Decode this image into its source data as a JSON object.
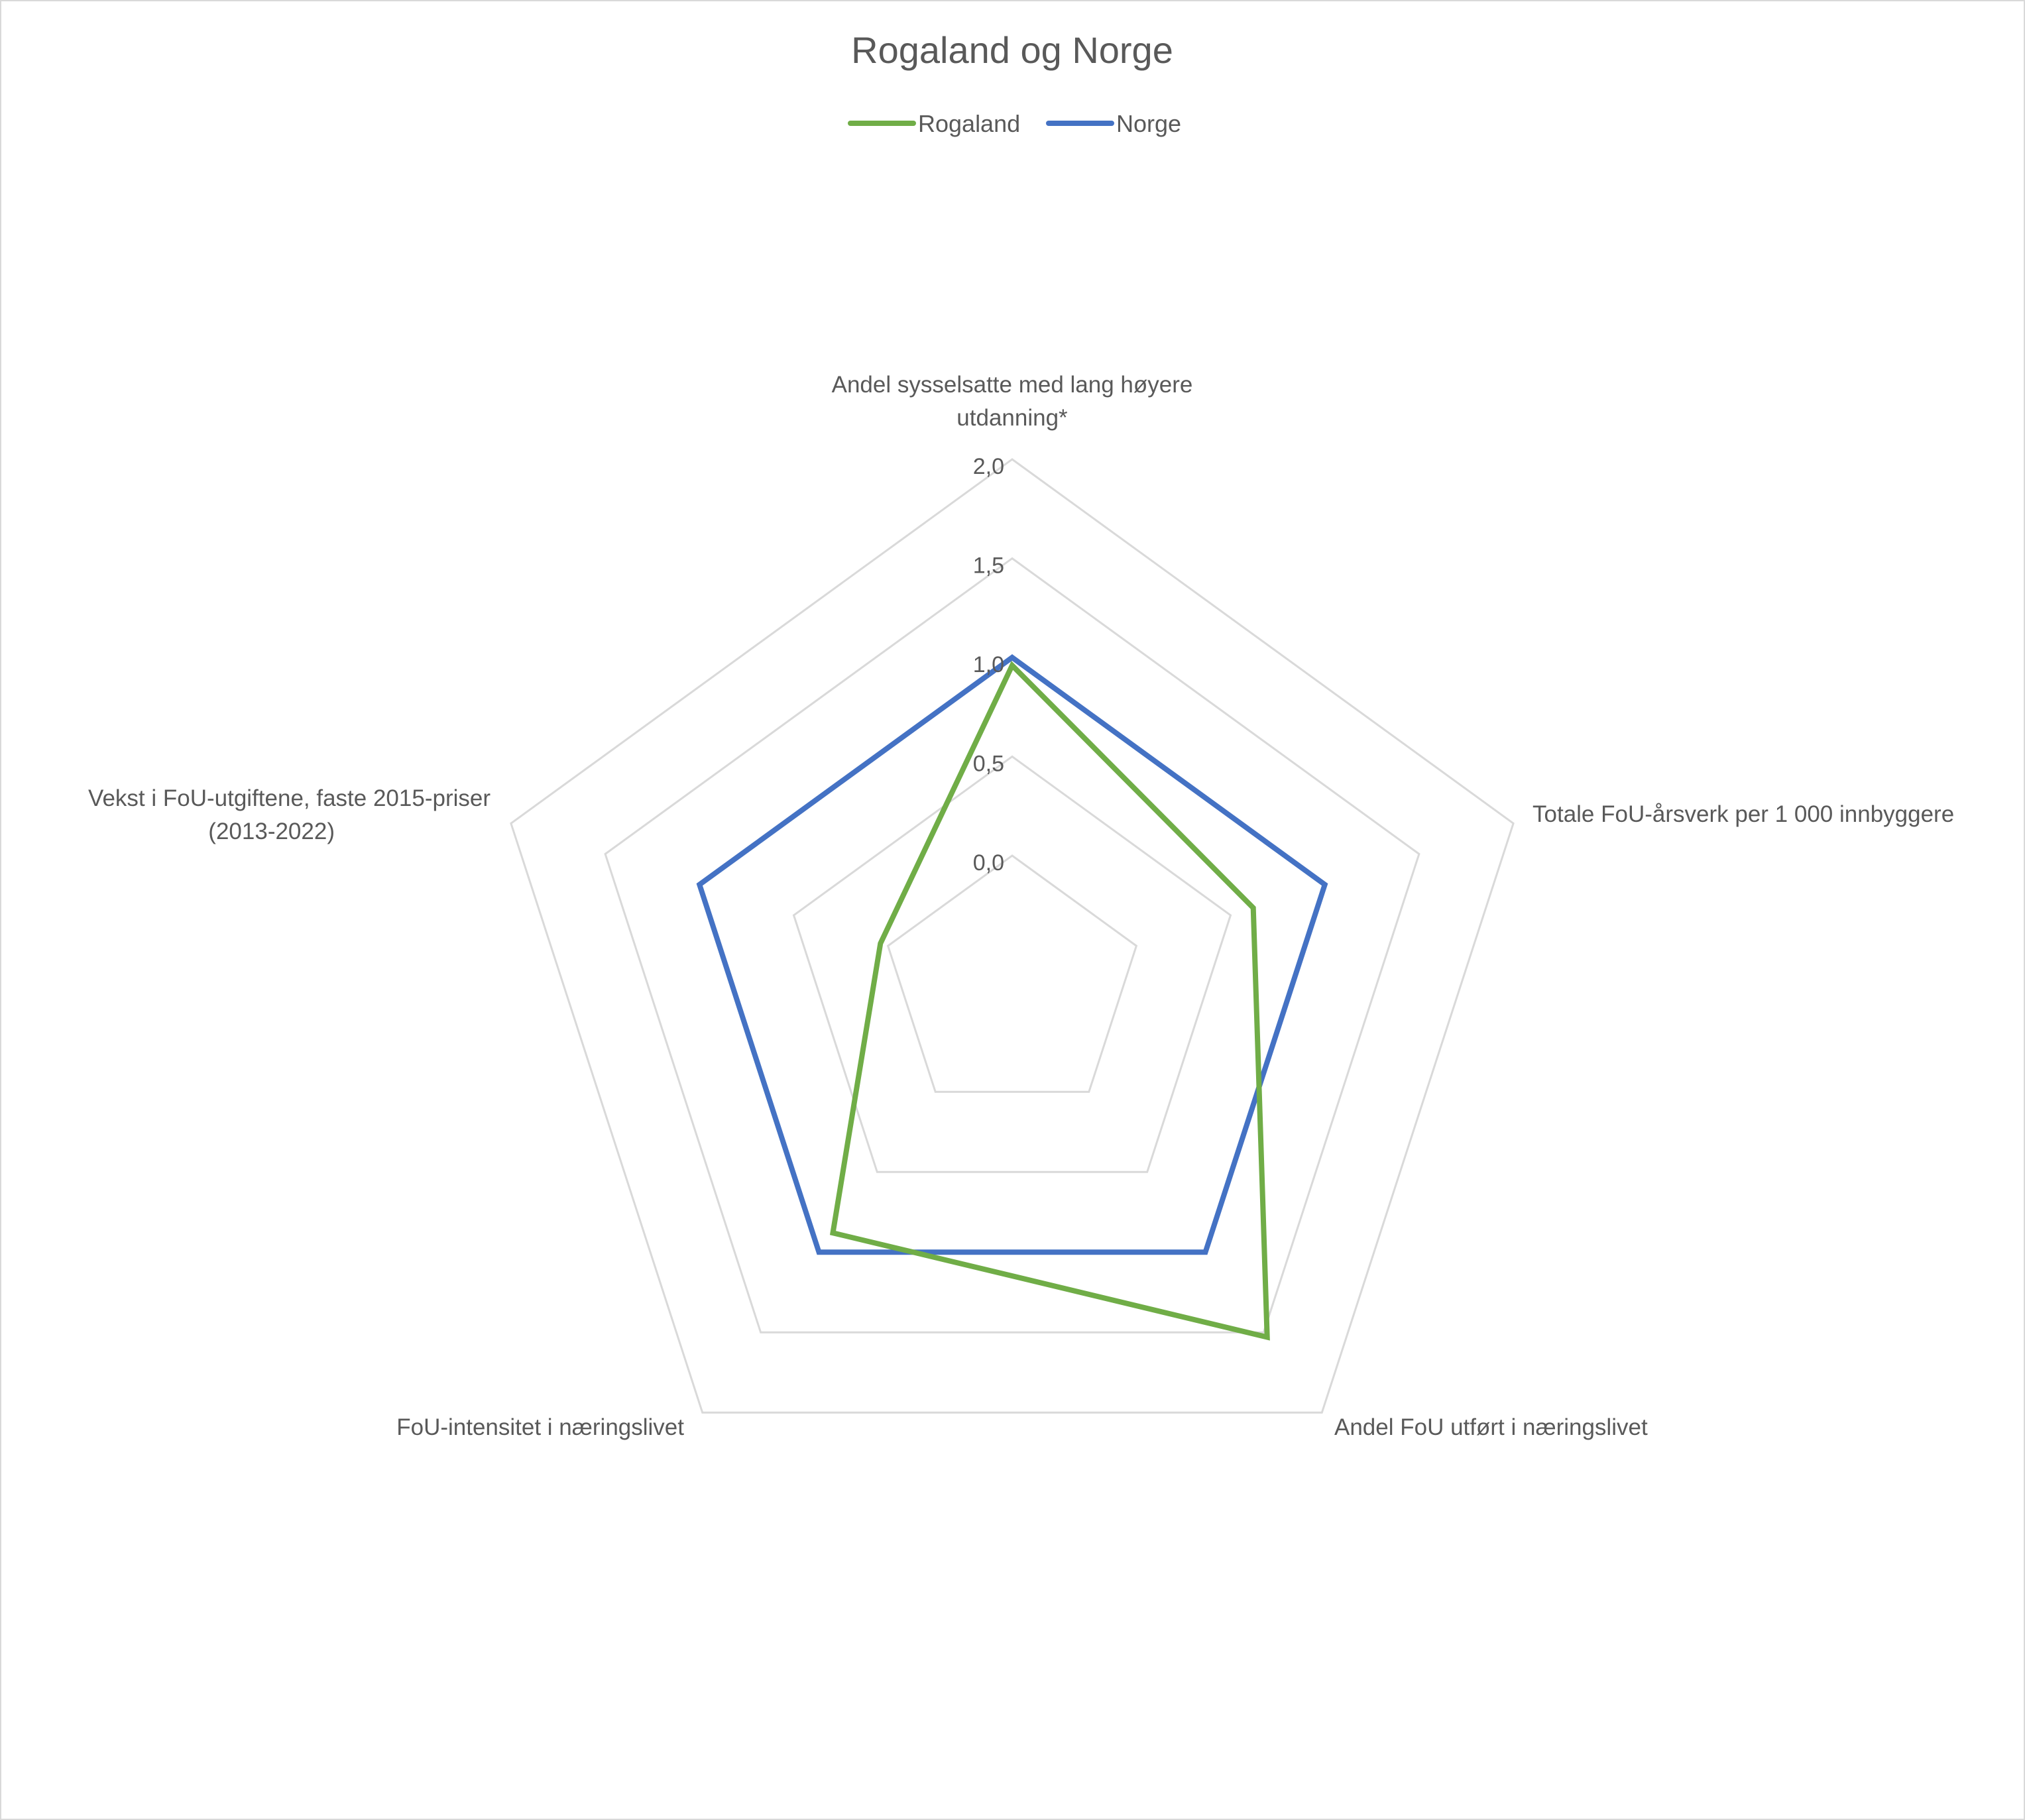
{
  "chart_data": {
    "type": "radar",
    "title": "Rogaland og Norge",
    "categories": [
      "Andel sysselsatte med lang høyere utdanning*",
      "Totale FoU-årsverk per 1 000 innbyggere",
      "Andel FoU utført i næringslivet",
      "FoU-intensitet i næringslivet",
      "Vekst i FoU-utgiftene, faste 2015-priser (2013-2022)"
    ],
    "category_lines": [
      [
        "Andel sysselsatte med lang høyere",
        "utdanning*"
      ],
      [
        "Totale FoU-årsverk per 1 000 innbyggere"
      ],
      [
        "Andel FoU utført i næringslivet"
      ],
      [
        "FoU-intensitet i næringslivet"
      ],
      [
        "Vekst i FoU-utgiftene, faste 2015-priser",
        "(2013-2022)"
      ]
    ],
    "series": [
      {
        "name": "Rogaland",
        "values": [
          0.96,
          0.62,
          1.53,
          0.88,
          0.04
        ],
        "color": "#70ad47"
      },
      {
        "name": "Norge",
        "values": [
          1.0,
          1.0,
          1.0,
          1.0,
          1.0
        ],
        "color": "#4472c4"
      }
    ],
    "rlim": [
      0.0,
      2.0
    ],
    "ticks": [
      0.0,
      0.5,
      1.0,
      1.5,
      2.0
    ],
    "tick_labels": [
      "0,0",
      "0,5",
      "1,0",
      "1,5",
      "2,0"
    ],
    "legend_position": "top",
    "grid": true,
    "grid_color": "#d9d9d9"
  }
}
